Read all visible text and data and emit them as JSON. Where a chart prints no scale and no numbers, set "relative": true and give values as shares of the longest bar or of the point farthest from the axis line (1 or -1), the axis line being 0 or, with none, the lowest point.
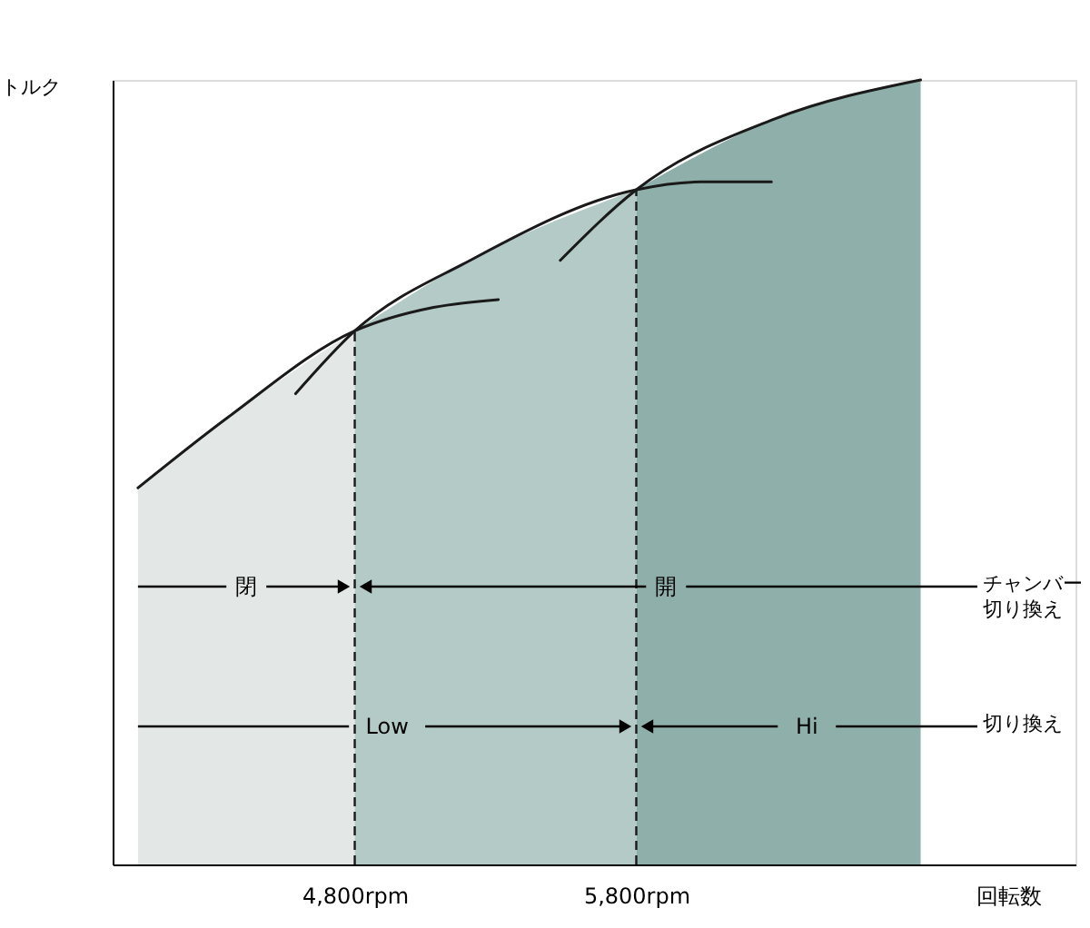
{
  "chart_data": {
    "type": "area",
    "relative": true,
    "xlabel": "回転数",
    "ylabel": "トルク",
    "xlim": [
      3940,
      7360
    ],
    "xticks": [
      {
        "value": 4800,
        "label": "4,800rpm"
      },
      {
        "value": 5800,
        "label": "5,800rpm"
      }
    ],
    "series": [
      {
        "color": "#e3e8e6",
        "x": [
          4030,
          4350,
          4800
        ],
        "values": [
          0.48,
          0.57,
          0.68
        ]
      },
      {
        "color": "#b3cac6",
        "x": [
          4800,
          5210,
          5800
        ],
        "values": [
          0.68,
          0.77,
          0.86
        ]
      },
      {
        "color": "#8fb0aa",
        "x": [
          5800,
          6290,
          6810
        ],
        "values": [
          0.86,
          0.95,
          1.0
        ]
      },
      {
        "type": "line",
        "color": "#1a1a1a",
        "x": [
          4030,
          4350,
          4800,
          5080,
          5310
        ],
        "values": [
          0.48,
          0.57,
          0.68,
          0.71,
          0.72
        ]
      },
      {
        "type": "line",
        "color": "#1a1a1a",
        "x": [
          4590,
          4800,
          5210,
          5800,
          6030,
          6280
        ],
        "values": [
          0.6,
          0.68,
          0.77,
          0.86,
          0.87,
          0.87
        ]
      },
      {
        "type": "line",
        "color": "#1a1a1a",
        "x": [
          5530,
          5800,
          6290,
          6810
        ],
        "values": [
          0.77,
          0.86,
          0.95,
          1.0
        ]
      }
    ],
    "ref_lines": [
      {
        "axis": "x",
        "value": 4800,
        "color": "#1a1a1a",
        "line_style": "dashed"
      },
      {
        "axis": "x",
        "value": 5800,
        "color": "#1a1a1a",
        "line_style": "dashed"
      }
    ],
    "annotations": [
      "閉",
      "開",
      "チャンバー切り換え",
      "Low",
      "Hi",
      "切り換え"
    ]
  }
}
